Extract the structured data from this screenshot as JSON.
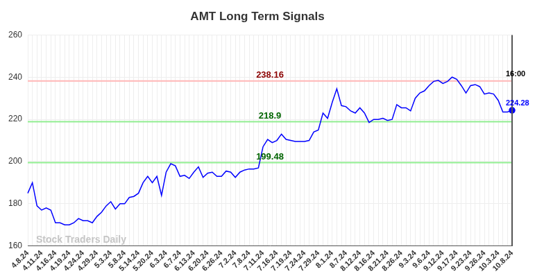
{
  "chart_data": {
    "type": "line",
    "title": "AMT Long Term Signals",
    "categories": [
      "4.8.24",
      null,
      null,
      "4.11.24",
      null,
      null,
      "4.16.24",
      null,
      null,
      "4.19.24",
      null,
      null,
      "4.24.24",
      null,
      null,
      "4.29.24",
      null,
      null,
      "5.3.24",
      null,
      null,
      "5.8.24",
      null,
      null,
      "5.14.24",
      null,
      null,
      "5.20.24",
      null,
      null,
      "6.3.24",
      null,
      null,
      "6.7.24",
      null,
      null,
      "6.13.24",
      null,
      null,
      "6.20.24",
      null,
      null,
      "6.26.24",
      null,
      null,
      "7.2.24",
      null,
      null,
      "7.8.24",
      null,
      null,
      "7.11.24",
      null,
      null,
      "7.16.24",
      null,
      null,
      "7.19.24",
      null,
      null,
      "7.24.24",
      null,
      null,
      "7.29.24",
      null,
      null,
      "8.1.24",
      null,
      null,
      "8.7.24",
      null,
      null,
      "8.12.24",
      null,
      null,
      "8.16.24",
      null,
      null,
      "8.21.24",
      null,
      null,
      "8.26.24",
      null,
      null,
      "9.3.24",
      null,
      null,
      "9.6.24",
      null,
      null,
      "9.12.24",
      null,
      null,
      "9.17.24",
      null,
      null,
      "9.23.24",
      null,
      null,
      "9.26.24",
      null,
      null,
      "10.3.24",
      null,
      null,
      "10.8.24"
    ],
    "values": [
      185,
      190,
      179,
      177,
      178,
      177,
      171,
      171,
      170,
      170,
      171,
      173,
      172,
      172,
      171,
      174,
      176,
      179,
      181,
      177.5,
      180,
      180,
      183,
      183.5,
      185,
      190,
      193,
      190,
      193,
      184,
      195,
      199,
      198,
      193,
      193.5,
      192,
      195,
      197.5,
      192.5,
      194.5,
      195,
      193,
      193,
      195.5,
      195,
      192.5,
      195,
      196,
      196.5,
      196.5,
      197,
      207,
      210.5,
      209,
      210,
      213,
      210.5,
      210,
      209.5,
      209.5,
      209.5,
      210,
      214,
      215,
      223,
      220.5,
      228,
      234.5,
      226.5,
      226,
      224,
      223,
      225.5,
      223,
      218.5,
      220,
      220,
      220.5,
      219.5,
      220,
      227,
      225.5,
      225.5,
      224,
      230,
      232.5,
      233.5,
      236,
      238,
      238.5,
      237,
      238,
      240,
      239,
      236,
      232.5,
      236,
      236.5,
      235.5,
      232,
      232.5,
      232,
      229,
      223.5,
      223.5,
      224.28
    ],
    "color": "#0000ff",
    "ylim": [
      160,
      260
    ],
    "yticks": [
      160,
      180,
      200,
      220,
      240,
      260
    ],
    "grid": true,
    "levels": [
      {
        "value": 238.16,
        "color": "#8b0000",
        "line_color": "#ffb6b6"
      },
      {
        "value": 218.9,
        "color": "#006400",
        "line_color": "#90ee90"
      },
      {
        "value": 199.48,
        "color": "#006400",
        "line_color": "#90ee90"
      }
    ],
    "end_label": "16:00",
    "watermark": "Stock Traders Daily"
  }
}
